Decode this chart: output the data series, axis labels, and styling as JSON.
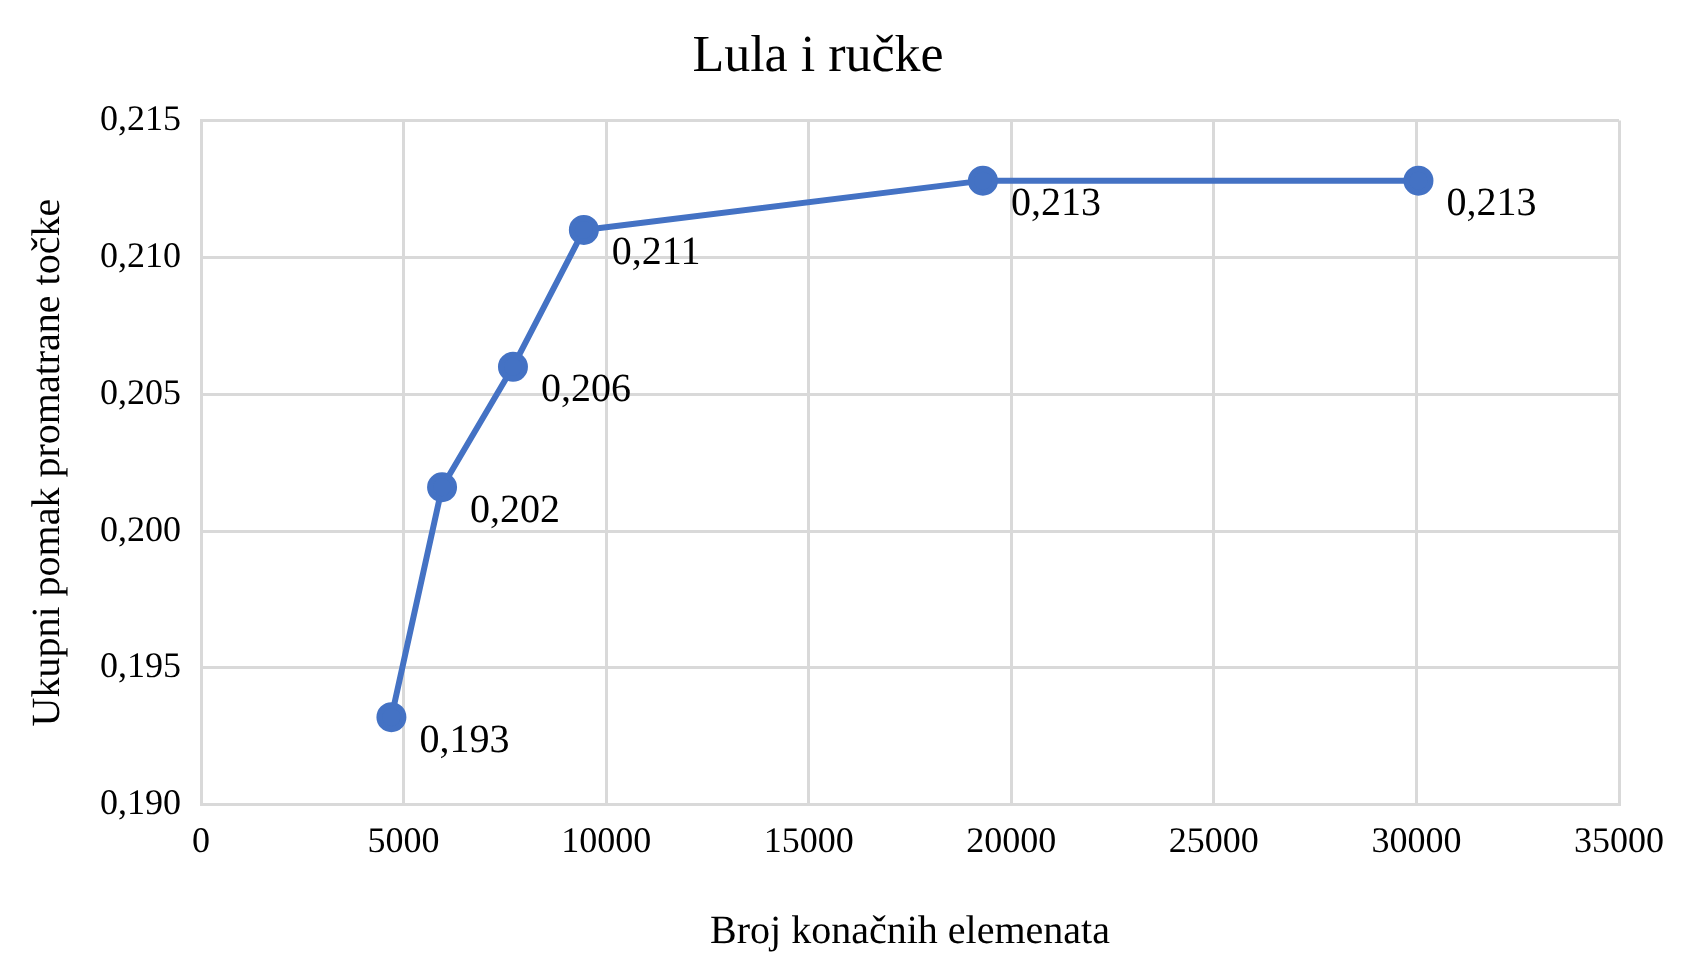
{
  "chart_data": {
    "type": "line",
    "title": "Lula i ručke",
    "xlabel": "Broj konačnih elemenata",
    "ylabel": "Ukupni pomak promatrane točke",
    "x": [
      4700,
      5950,
      7700,
      9450,
      19300,
      30050
    ],
    "series": [
      {
        "color": "#4472c4",
        "values": [
          0.1932,
          0.2016,
          0.206,
          0.211,
          0.2128,
          0.2128
        ],
        "value_labels": [
          "0,193",
          "0,202",
          "0,206",
          "0,211",
          "0,213",
          "0,213"
        ]
      }
    ],
    "xlim": [
      0,
      35000
    ],
    "xticks": [
      0,
      5000,
      10000,
      15000,
      20000,
      25000,
      30000,
      35000
    ],
    "ylim": [
      0.19,
      0.215
    ],
    "yticks": [
      {
        "value": 0.19,
        "label": "0,190"
      },
      {
        "value": 0.195,
        "label": "0,195"
      },
      {
        "value": 0.2,
        "label": "0,200"
      },
      {
        "value": 0.205,
        "label": "0,205"
      },
      {
        "value": 0.21,
        "label": "0,210"
      },
      {
        "value": 0.215,
        "label": "0,215"
      }
    ],
    "grid": true,
    "marker": "circle",
    "line_style": "solid",
    "legend": false
  }
}
